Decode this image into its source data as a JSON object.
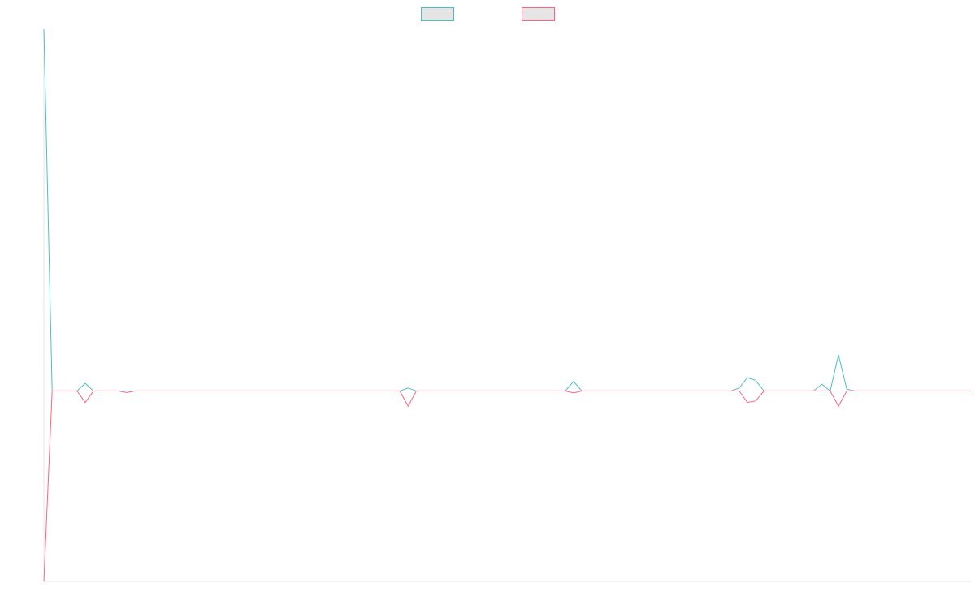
{
  "chart_data": {
    "type": "line",
    "title": "",
    "xlabel": "",
    "ylabel": "",
    "grid": false,
    "legend_position": "top-center",
    "x_range": [
      0,
      112
    ],
    "ylim": [
      -50,
      95
    ],
    "series": [
      {
        "color": "#4bc0c0",
        "swatch_fill": "#e5e5e5",
        "points": [
          [
            0,
            95
          ],
          [
            1,
            0
          ],
          [
            4,
            0
          ],
          [
            5,
            2
          ],
          [
            6,
            0
          ],
          [
            9,
            0
          ],
          [
            10,
            0
          ],
          [
            43,
            0
          ],
          [
            44,
            0.8
          ],
          [
            45,
            0
          ],
          [
            63,
            0
          ],
          [
            64,
            2.5
          ],
          [
            65,
            0
          ],
          [
            83,
            0
          ],
          [
            84,
            0.8
          ],
          [
            85,
            3.5
          ],
          [
            86,
            2.8
          ],
          [
            87,
            0
          ],
          [
            93,
            0
          ],
          [
            94,
            1.8
          ],
          [
            95,
            0
          ],
          [
            96,
            9.5
          ],
          [
            97,
            0.5
          ],
          [
            98,
            0
          ],
          [
            112,
            0
          ]
        ]
      },
      {
        "color": "#ff6384",
        "swatch_fill": "#e5e5e5",
        "points": [
          [
            0,
            -50
          ],
          [
            1,
            0
          ],
          [
            4,
            0
          ],
          [
            5,
            -3
          ],
          [
            6,
            0
          ],
          [
            9,
            0
          ],
          [
            10,
            -0.4
          ],
          [
            11,
            0
          ],
          [
            43,
            0
          ],
          [
            44,
            -4
          ],
          [
            45,
            0
          ],
          [
            63,
            0
          ],
          [
            64,
            -0.5
          ],
          [
            65,
            0
          ],
          [
            84,
            0
          ],
          [
            85,
            -3
          ],
          [
            86,
            -2.6
          ],
          [
            87,
            0
          ],
          [
            94,
            0
          ],
          [
            95,
            0
          ],
          [
            96,
            -4
          ],
          [
            97,
            0
          ],
          [
            112,
            0
          ]
        ]
      }
    ]
  }
}
